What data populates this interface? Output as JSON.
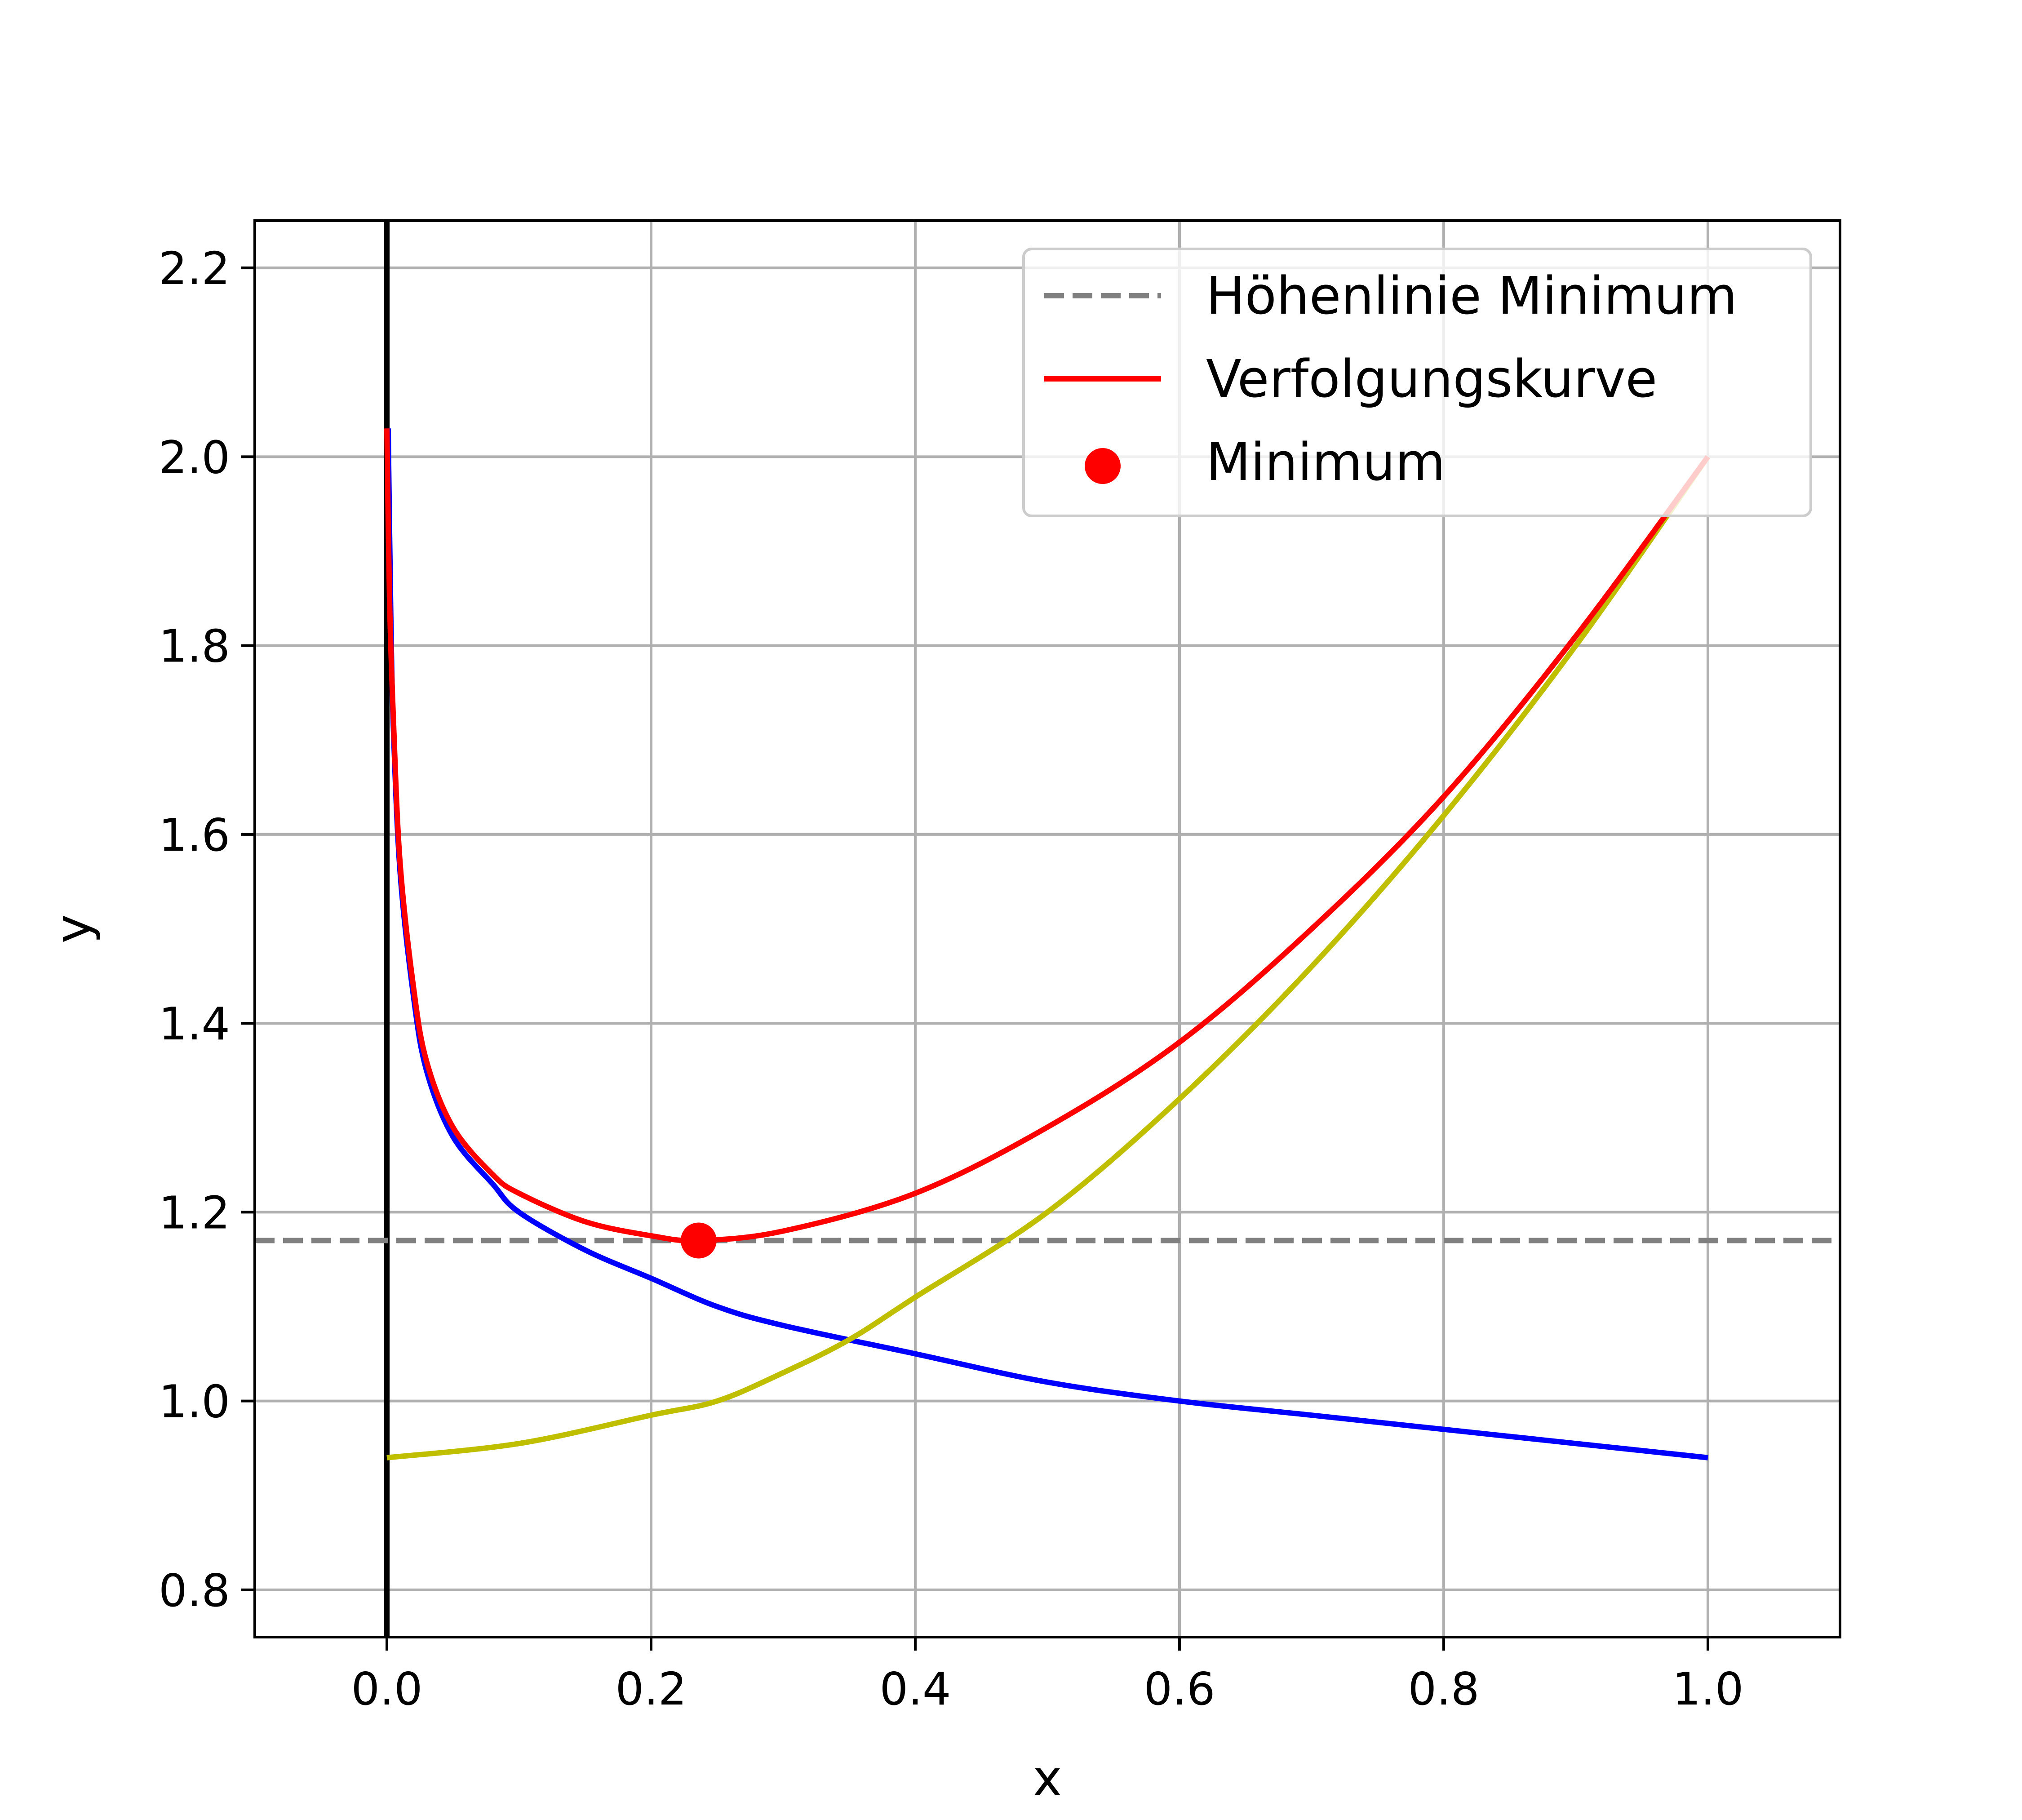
{
  "chart_data": {
    "type": "line",
    "title": "",
    "xlabel": "x",
    "ylabel": "y",
    "xlim": [
      -0.1,
      1.1
    ],
    "ylim": [
      0.75,
      2.25
    ],
    "xticks": [
      "0.0",
      "0.2",
      "0.4",
      "0.6",
      "0.8",
      "1.0"
    ],
    "yticks": [
      "0.8",
      "1.0",
      "1.2",
      "1.4",
      "1.6",
      "1.8",
      "2.0",
      "2.2"
    ],
    "grid": true,
    "legend_position": "top-right",
    "vertical_line": {
      "x": 0.0,
      "color": "#000000"
    },
    "reference_line": {
      "name": "Höhenlinie Minimum",
      "y": 1.17,
      "color": "#808080",
      "style": "dashed"
    },
    "series": [
      {
        "color": "#0000ff",
        "x": [
          0.001,
          0.003,
          0.005,
          0.01,
          0.02,
          0.03,
          0.05,
          0.08,
          0.1,
          0.15,
          0.2,
          0.25,
          0.3,
          0.4,
          0.5,
          0.6,
          0.7,
          0.8,
          0.9,
          1.0
        ],
        "y": [
          2.03,
          1.83,
          1.71,
          1.56,
          1.43,
          1.35,
          1.28,
          1.23,
          1.2,
          1.16,
          1.13,
          1.1,
          1.08,
          1.05,
          1.02,
          1.0,
          0.985,
          0.97,
          0.955,
          0.94
        ]
      },
      {
        "color": "#bfbf00",
        "x": [
          0.0,
          0.1,
          0.2,
          0.25,
          0.3,
          0.35,
          0.4,
          0.5,
          0.6,
          0.7,
          0.8,
          0.9,
          1.0
        ],
        "y": [
          0.94,
          0.955,
          0.985,
          1.0,
          1.03,
          1.065,
          1.11,
          1.2,
          1.32,
          1.46,
          1.62,
          1.8,
          2.0
        ]
      },
      {
        "name": "Verfolgungskurve",
        "color": "#ff0000",
        "x": [
          0.0,
          0.002,
          0.005,
          0.01,
          0.02,
          0.03,
          0.05,
          0.08,
          0.1,
          0.15,
          0.2,
          0.236,
          0.3,
          0.4,
          0.5,
          0.6,
          0.7,
          0.8,
          0.9,
          1.0
        ],
        "y": [
          2.03,
          1.85,
          1.72,
          1.57,
          1.44,
          1.36,
          1.29,
          1.24,
          1.22,
          1.19,
          1.175,
          1.17,
          1.18,
          1.22,
          1.29,
          1.38,
          1.5,
          1.64,
          1.81,
          2.0
        ]
      }
    ],
    "points": [
      {
        "name": "Minimum",
        "x": 0.236,
        "y": 1.17,
        "color": "#ff0000"
      }
    ]
  }
}
